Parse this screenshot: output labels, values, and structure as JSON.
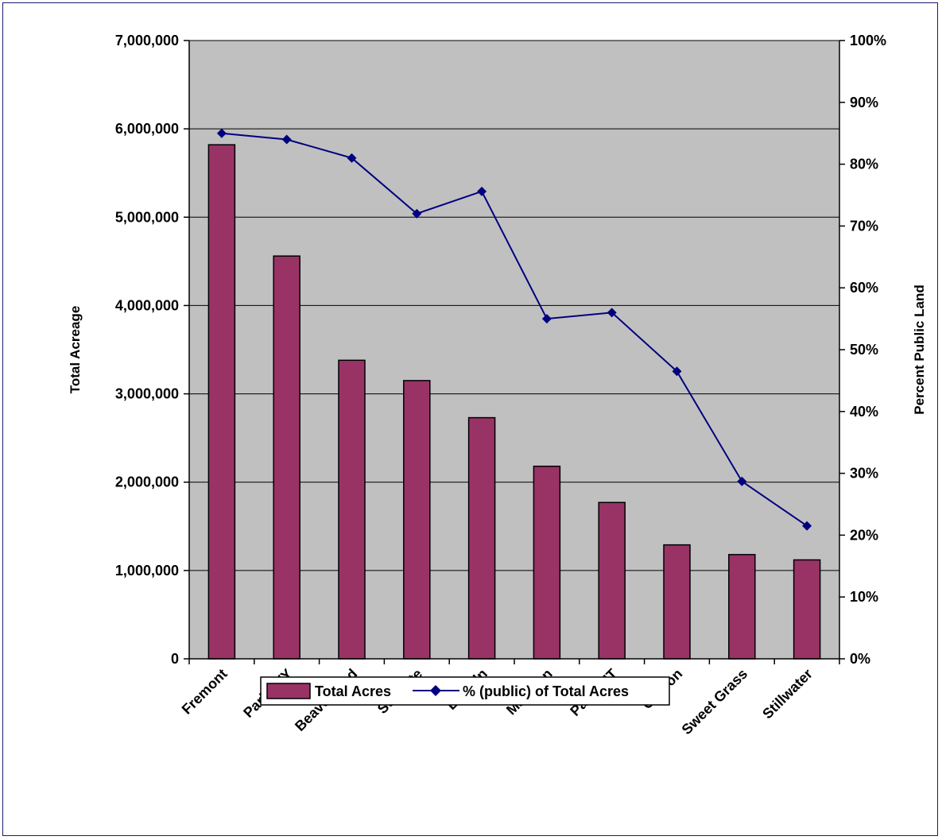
{
  "chart_data": {
    "type": "bar+line",
    "title": "",
    "categories": [
      "Fremont",
      "Park, WY",
      "Beaverhead",
      "Sublette",
      "Lincoln",
      "Madison",
      "Park, MT",
      "Carbon",
      "Sweet Grass",
      "Stillwater"
    ],
    "series": [
      {
        "name": "Total Acres",
        "type": "bar",
        "axis": "left",
        "color": "#993366",
        "values": [
          5820000,
          4560000,
          3380000,
          3150000,
          2730000,
          2180000,
          1770000,
          1290000,
          1180000,
          1120000
        ]
      },
      {
        "name": "% (public) of Total Acres",
        "type": "line",
        "axis": "right",
        "color": "#000080",
        "marker": "diamond",
        "values": [
          85,
          84,
          81,
          72,
          75.6,
          55,
          56,
          46.5,
          28.7,
          21.5
        ]
      }
    ],
    "ylabel": "Total Acreage",
    "y2label": "Percent Public  Land",
    "ylim": [
      0,
      7000000
    ],
    "y2lim": [
      0,
      100
    ],
    "yticks": [
      "0",
      "1,000,000",
      "2,000,000",
      "3,000,000",
      "4,000,000",
      "5,000,000",
      "6,000,000",
      "7,000,000"
    ],
    "y2ticks": [
      "0%",
      "10%",
      "20%",
      "30%",
      "40%",
      "50%",
      "60%",
      "70%",
      "80%",
      "90%",
      "100%"
    ],
    "grid": true,
    "plot_background": "#c0c0c0",
    "legend_position": "bottom"
  }
}
